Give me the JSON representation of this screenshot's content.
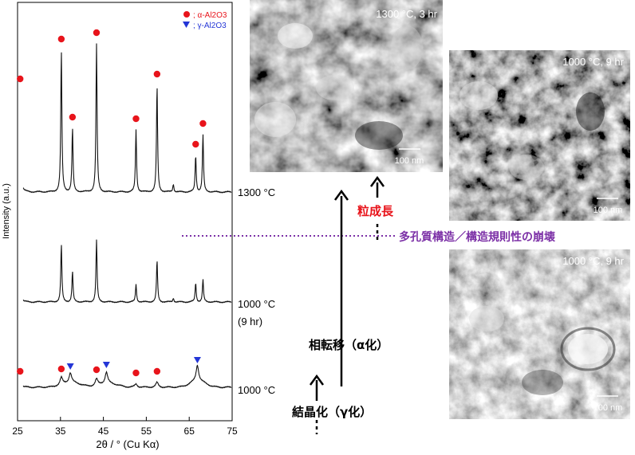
{
  "chart_data": {
    "type": "line",
    "title": "",
    "xlabel": "2θ / ° (Cu Kα)",
    "ylabel": "Intensity (a.u.)",
    "xlim": [
      25,
      75
    ],
    "xticks": [
      25,
      35,
      45,
      55,
      65,
      75
    ],
    "legend": {
      "placement": "top-right",
      "alpha": "; α-Al2O3",
      "gamma": "; γ-Al2O3",
      "alpha_color": "#e8141b",
      "gamma_color": "#2436d6"
    },
    "series": [
      {
        "name": "1300 °C",
        "label_line2": "",
        "peaks": [
          {
            "x": 25.6,
            "h": 128,
            "mark": "alpha"
          },
          {
            "x": 35.2,
            "h": 178,
            "mark": "alpha"
          },
          {
            "x": 37.8,
            "h": 80,
            "mark": "alpha"
          },
          {
            "x": 43.4,
            "h": 186,
            "mark": "alpha"
          },
          {
            "x": 52.6,
            "h": 78,
            "mark": "alpha"
          },
          {
            "x": 57.5,
            "h": 134,
            "mark": "alpha"
          },
          {
            "x": 61.3,
            "h": 10,
            "mark": ""
          },
          {
            "x": 66.5,
            "h": 46,
            "mark": "alpha"
          },
          {
            "x": 68.2,
            "h": 72,
            "mark": "alpha"
          }
        ]
      },
      {
        "name": "1000 °C",
        "label_line2": "(9 hr)",
        "peaks": [
          {
            "x": 25.6,
            "h": 54,
            "mark": ""
          },
          {
            "x": 35.2,
            "h": 72,
            "mark": ""
          },
          {
            "x": 37.8,
            "h": 38,
            "mark": ""
          },
          {
            "x": 43.4,
            "h": 78,
            "mark": ""
          },
          {
            "x": 52.6,
            "h": 22,
            "mark": ""
          },
          {
            "x": 57.5,
            "h": 52,
            "mark": ""
          },
          {
            "x": 61.3,
            "h": 5,
            "mark": ""
          },
          {
            "x": 66.5,
            "h": 24,
            "mark": ""
          },
          {
            "x": 68.2,
            "h": 28,
            "mark": ""
          }
        ]
      },
      {
        "name": "1000 °C",
        "label_line2": "",
        "peaks": [
          {
            "x": 25.6,
            "h": 6,
            "mark": "alpha"
          },
          {
            "x": 35.2,
            "h": 9,
            "mark": "alpha"
          },
          {
            "x": 37.3,
            "h": 12,
            "mark": "gamma"
          },
          {
            "x": 43.4,
            "h": 8,
            "mark": "alpha"
          },
          {
            "x": 45.7,
            "h": 14,
            "mark": "gamma"
          },
          {
            "x": 52.6,
            "h": 4,
            "mark": "alpha"
          },
          {
            "x": 57.5,
            "h": 6,
            "mark": "alpha"
          },
          {
            "x": 66.9,
            "h": 20,
            "mark": "gamma"
          }
        ]
      }
    ]
  },
  "diagram": {
    "grain_growth": "粒成長",
    "collapse": "多孔質構造／構造規則性の崩壊",
    "phase_transition": "相転移（α化）",
    "crystallization": "結晶化（γ化）",
    "grain_color": "#e8141b",
    "collapse_color": "#7b2fa6"
  },
  "micrographs": [
    {
      "label": "1300 °C, 3 hr",
      "scale": "100 nm"
    },
    {
      "label": "1000 °C, 9 hr",
      "scale": "100 nm"
    },
    {
      "label": "1000 °C, 9 hr",
      "scale": "100 nm"
    }
  ]
}
